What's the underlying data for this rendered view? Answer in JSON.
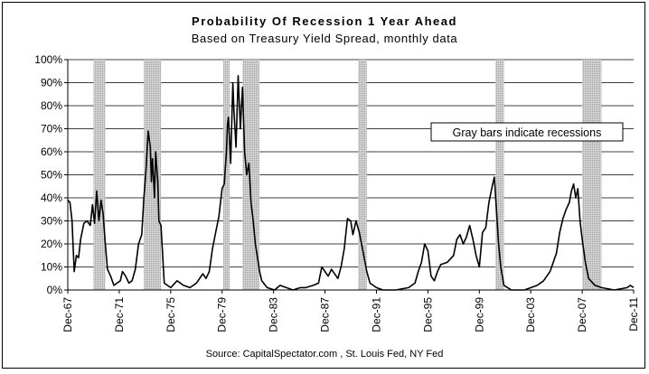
{
  "chart_data": {
    "type": "line",
    "title": "Probability Of Recession 1 Year Ahead",
    "subtitle": "Based on Treasury Yield Spread, monthly data",
    "source": "Source: CapitalSpectator.com , St. Louis Fed, NY Fed",
    "annotation": "Gray bars indicate recessions",
    "xlabel": "",
    "ylabel": "",
    "ylim": [
      0,
      100
    ],
    "xlim": [
      "1967-12",
      "2011-12"
    ],
    "grid": "horizontal",
    "y_ticks": [
      {
        "value": 0,
        "label": "0%"
      },
      {
        "value": 10,
        "label": "10%"
      },
      {
        "value": 20,
        "label": "20%"
      },
      {
        "value": 30,
        "label": "30%"
      },
      {
        "value": 40,
        "label": "40%"
      },
      {
        "value": 50,
        "label": "50%"
      },
      {
        "value": 60,
        "label": "60%"
      },
      {
        "value": 70,
        "label": "70%"
      },
      {
        "value": 80,
        "label": "80%"
      },
      {
        "value": 90,
        "label": "90%"
      },
      {
        "value": 100,
        "label": "100%"
      }
    ],
    "x_ticks": [
      {
        "date": "1967-12",
        "label": "Dec-67"
      },
      {
        "date": "1971-12",
        "label": "Dec-71"
      },
      {
        "date": "1975-12",
        "label": "Dec-75"
      },
      {
        "date": "1979-12",
        "label": "Dec-79"
      },
      {
        "date": "1983-12",
        "label": "Dec-83"
      },
      {
        "date": "1987-12",
        "label": "Dec-87"
      },
      {
        "date": "1991-12",
        "label": "Dec-91"
      },
      {
        "date": "1995-12",
        "label": "Dec-95"
      },
      {
        "date": "1999-12",
        "label": "Dec-99"
      },
      {
        "date": "2003-12",
        "label": "Dec-03"
      },
      {
        "date": "2007-12",
        "label": "Dec-07"
      },
      {
        "date": "2011-12",
        "label": "Dec-11"
      }
    ],
    "recessions": [
      {
        "start": "1969-12",
        "end": "1970-11"
      },
      {
        "start": "1973-11",
        "end": "1975-03"
      },
      {
        "start": "1980-01",
        "end": "1980-07"
      },
      {
        "start": "1981-07",
        "end": "1982-11"
      },
      {
        "start": "1990-07",
        "end": "1991-03"
      },
      {
        "start": "2001-03",
        "end": "2001-11"
      },
      {
        "start": "2007-12",
        "end": "2009-06"
      }
    ],
    "series": [
      {
        "color": "#000000",
        "points": [
          [
            "1967-12",
            39
          ],
          [
            "1968-02",
            38
          ],
          [
            "1968-04",
            30
          ],
          [
            "1968-06",
            8
          ],
          [
            "1968-08",
            15
          ],
          [
            "1968-10",
            14
          ],
          [
            "1968-12",
            22
          ],
          [
            "1969-03",
            29
          ],
          [
            "1969-06",
            30
          ],
          [
            "1969-09",
            28
          ],
          [
            "1969-11",
            37
          ],
          [
            "1970-01",
            29
          ],
          [
            "1970-03",
            43
          ],
          [
            "1970-05",
            30
          ],
          [
            "1970-07",
            39
          ],
          [
            "1970-09",
            33
          ],
          [
            "1970-11",
            20
          ],
          [
            "1971-01",
            9
          ],
          [
            "1971-04",
            6
          ],
          [
            "1971-07",
            2
          ],
          [
            "1971-10",
            3
          ],
          [
            "1972-01",
            4
          ],
          [
            "1972-03",
            8
          ],
          [
            "1972-06",
            6
          ],
          [
            "1972-09",
            3
          ],
          [
            "1972-12",
            4
          ],
          [
            "1973-03",
            9
          ],
          [
            "1973-06",
            20
          ],
          [
            "1973-09",
            24
          ],
          [
            "1973-11",
            40
          ],
          [
            "1974-01",
            52
          ],
          [
            "1974-03",
            69
          ],
          [
            "1974-05",
            62
          ],
          [
            "1974-06",
            47
          ],
          [
            "1974-07",
            57
          ],
          [
            "1974-09",
            40
          ],
          [
            "1974-10",
            60
          ],
          [
            "1974-12",
            47
          ],
          [
            "1975-01",
            30
          ],
          [
            "1975-03",
            28
          ],
          [
            "1975-06",
            3
          ],
          [
            "1975-09",
            2
          ],
          [
            "1975-12",
            1
          ],
          [
            "1976-06",
            4
          ],
          [
            "1976-12",
            2
          ],
          [
            "1977-06",
            1
          ],
          [
            "1977-12",
            3
          ],
          [
            "1978-06",
            7
          ],
          [
            "1978-09",
            5
          ],
          [
            "1978-12",
            8
          ],
          [
            "1979-03",
            18
          ],
          [
            "1979-06",
            25
          ],
          [
            "1979-09",
            32
          ],
          [
            "1979-12",
            44
          ],
          [
            "1980-02",
            46
          ],
          [
            "1980-04",
            60
          ],
          [
            "1980-05",
            72
          ],
          [
            "1980-06",
            75
          ],
          [
            "1980-08",
            55
          ],
          [
            "1980-10",
            90
          ],
          [
            "1980-11",
            78
          ],
          [
            "1981-01",
            62
          ],
          [
            "1981-03",
            93
          ],
          [
            "1981-05",
            70
          ],
          [
            "1981-07",
            88
          ],
          [
            "1981-09",
            60
          ],
          [
            "1981-11",
            50
          ],
          [
            "1982-01",
            55
          ],
          [
            "1982-03",
            38
          ],
          [
            "1982-05",
            30
          ],
          [
            "1982-07",
            20
          ],
          [
            "1982-09",
            14
          ],
          [
            "1982-11",
            8
          ],
          [
            "1983-01",
            4
          ],
          [
            "1983-06",
            1
          ],
          [
            "1984-01",
            0
          ],
          [
            "1984-06",
            2
          ],
          [
            "1984-12",
            1
          ],
          [
            "1985-06",
            0
          ],
          [
            "1986-01",
            1
          ],
          [
            "1986-06",
            1
          ],
          [
            "1987-01",
            2
          ],
          [
            "1987-06",
            3
          ],
          [
            "1987-09",
            10
          ],
          [
            "1987-12",
            8
          ],
          [
            "1988-03",
            6
          ],
          [
            "1988-06",
            9
          ],
          [
            "1988-09",
            7
          ],
          [
            "1988-12",
            5
          ],
          [
            "1989-03",
            10
          ],
          [
            "1989-06",
            18
          ],
          [
            "1989-09",
            31
          ],
          [
            "1989-12",
            30
          ],
          [
            "1990-02",
            24
          ],
          [
            "1990-05",
            30
          ],
          [
            "1990-08",
            25
          ],
          [
            "1990-11",
            18
          ],
          [
            "1991-03",
            8
          ],
          [
            "1991-06",
            3
          ],
          [
            "1991-12",
            1
          ],
          [
            "1992-06",
            0
          ],
          [
            "1993-06",
            0
          ],
          [
            "1994-06",
            1
          ],
          [
            "1994-12",
            3
          ],
          [
            "1995-03",
            8
          ],
          [
            "1995-06",
            12
          ],
          [
            "1995-09",
            20
          ],
          [
            "1995-12",
            17
          ],
          [
            "1996-03",
            6
          ],
          [
            "1996-06",
            4
          ],
          [
            "1996-09",
            8
          ],
          [
            "1996-12",
            11
          ],
          [
            "1997-06",
            12
          ],
          [
            "1997-12",
            15
          ],
          [
            "1998-03",
            22
          ],
          [
            "1998-06",
            24
          ],
          [
            "1998-09",
            20
          ],
          [
            "1998-12",
            23
          ],
          [
            "1999-03",
            28
          ],
          [
            "1999-06",
            22
          ],
          [
            "1999-09",
            15
          ],
          [
            "1999-12",
            10
          ],
          [
            "2000-03",
            25
          ],
          [
            "2000-06",
            27
          ],
          [
            "2000-09",
            38
          ],
          [
            "2000-12",
            45
          ],
          [
            "2001-02",
            49
          ],
          [
            "2001-04",
            35
          ],
          [
            "2001-06",
            20
          ],
          [
            "2001-08",
            10
          ],
          [
            "2001-11",
            2
          ],
          [
            "2002-06",
            0
          ],
          [
            "2003-06",
            0
          ],
          [
            "2004-06",
            2
          ],
          [
            "2004-12",
            4
          ],
          [
            "2005-06",
            8
          ],
          [
            "2005-12",
            16
          ],
          [
            "2006-03",
            25
          ],
          [
            "2006-06",
            31
          ],
          [
            "2006-09",
            35
          ],
          [
            "2006-12",
            38
          ],
          [
            "2007-02",
            43
          ],
          [
            "2007-04",
            46
          ],
          [
            "2007-06",
            40
          ],
          [
            "2007-08",
            44
          ],
          [
            "2007-10",
            30
          ],
          [
            "2007-12",
            22
          ],
          [
            "2008-03",
            12
          ],
          [
            "2008-06",
            5
          ],
          [
            "2008-12",
            2
          ],
          [
            "2009-06",
            1
          ],
          [
            "2010-06",
            0
          ],
          [
            "2011-06",
            1
          ],
          [
            "2011-09",
            2
          ],
          [
            "2011-12",
            1
          ]
        ]
      }
    ]
  }
}
